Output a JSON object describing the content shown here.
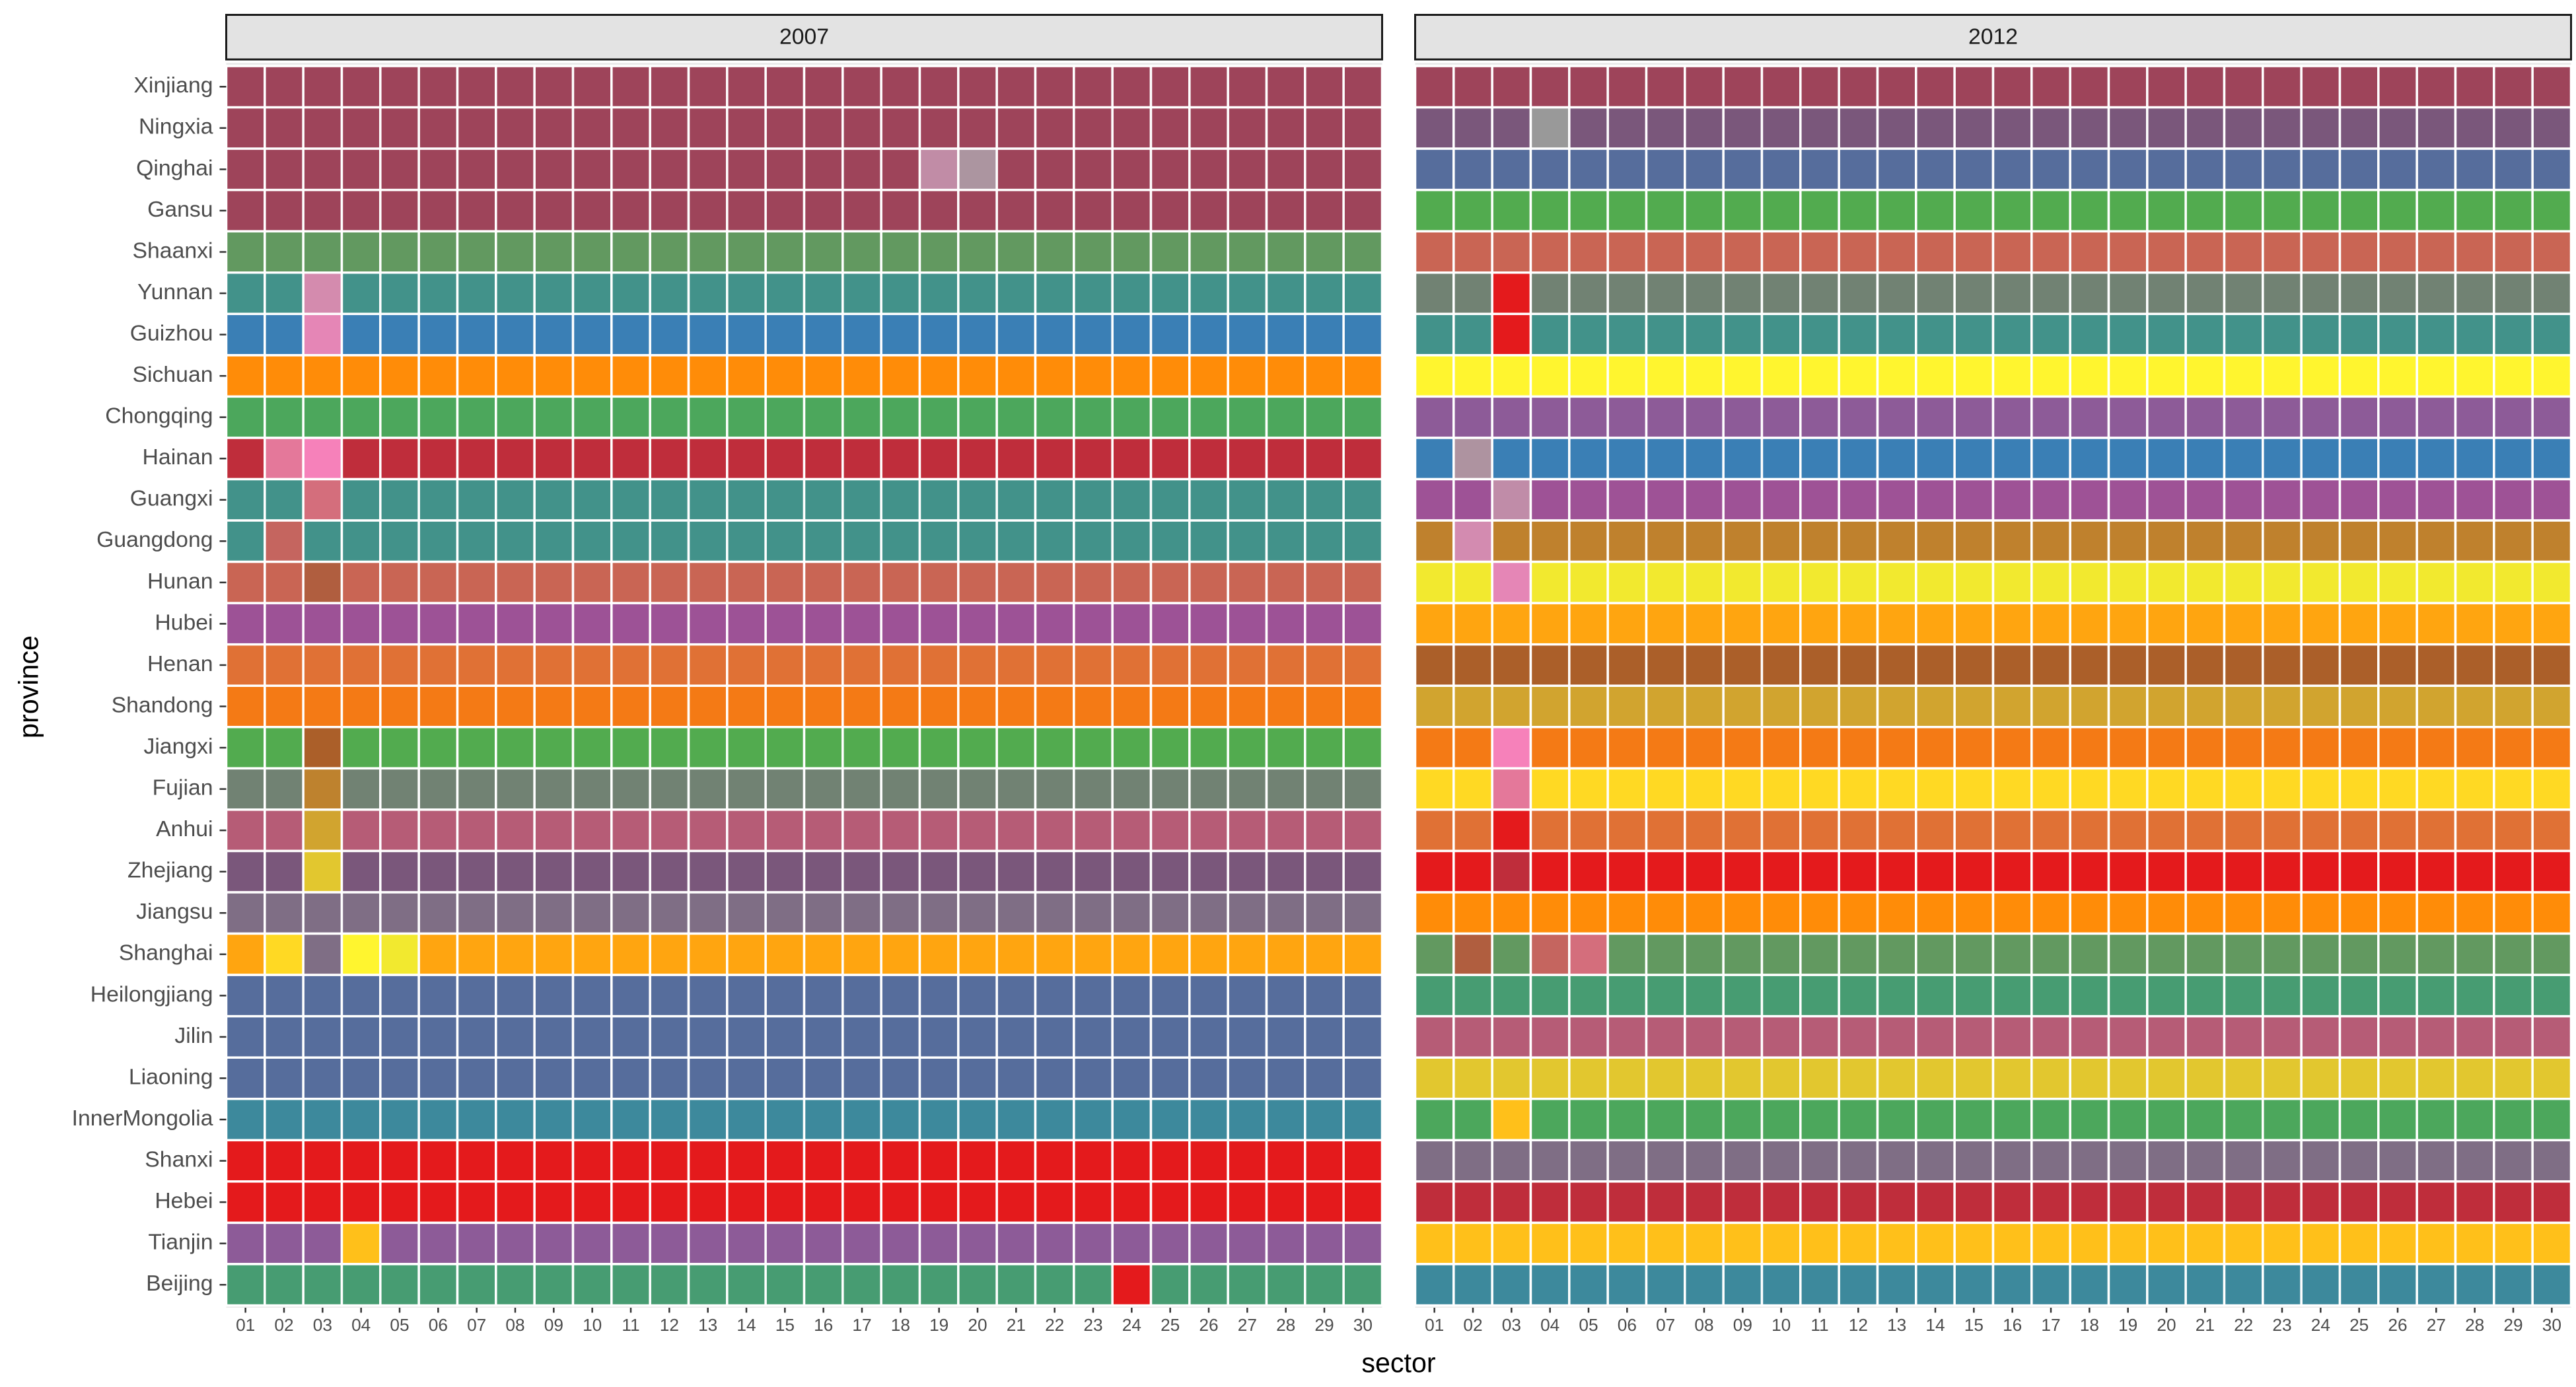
{
  "chart_data": {
    "type": "heatmap",
    "xlabel": "sector",
    "ylabel": "province",
    "facets": [
      "2007",
      "2012"
    ],
    "sectors": [
      "01",
      "02",
      "03",
      "04",
      "05",
      "06",
      "07",
      "08",
      "09",
      "10",
      "11",
      "12",
      "13",
      "14",
      "15",
      "16",
      "17",
      "18",
      "19",
      "20",
      "21",
      "22",
      "23",
      "24",
      "25",
      "26",
      "27",
      "28",
      "29",
      "30"
    ],
    "provinces": [
      "Xinjiang",
      "Ningxia",
      "Qinghai",
      "Gansu",
      "Shaanxi",
      "Yunnan",
      "Guizhou",
      "Sichuan",
      "Chongqing",
      "Hainan",
      "Guangxi",
      "Guangdong",
      "Hunan",
      "Hubei",
      "Henan",
      "Shandong",
      "Jiangxi",
      "Fujian",
      "Anhui",
      "Zhejiang",
      "Jiangsu",
      "Shanghai",
      "Heilongjiang",
      "Jilin",
      "Liaoning",
      "InnerMongolia",
      "Shanxi",
      "Hebei",
      "Tianjin",
      "Beijing"
    ],
    "fill": {
      "2007": [
        {
          "base": "#9e445a"
        },
        {
          "base": "#9e445a"
        },
        {
          "base": "#9e445a",
          "except": {
            "19": "#c18ca6",
            "20": "#ac95a0"
          }
        },
        {
          "base": "#9e445a"
        },
        {
          "base": "#629960"
        },
        {
          "base": "#42928a",
          "except": {
            "03": "#d48bae"
          }
        },
        {
          "base": "#3a7fb5",
          "except": {
            "03": "#e586b6"
          }
        },
        {
          "base": "#ff8c08"
        },
        {
          "base": "#4ca75c"
        },
        {
          "base": "#bf2d3b",
          "except": {
            "02": "#e4789a",
            "03": "#f681ba"
          }
        },
        {
          "base": "#42928a",
          "except": {
            "03": "#d46e7c"
          }
        },
        {
          "base": "#42928a",
          "except": {
            "02": "#c5655f"
          }
        },
        {
          "base": "#c96554",
          "except": {
            "03": "#b05e3f"
          }
        },
        {
          "base": "#9d5296"
        },
        {
          "base": "#e07135"
        },
        {
          "base": "#f47a15"
        },
        {
          "base": "#52ab4f",
          "except": {
            "03": "#ab5f29"
          }
        },
        {
          "base": "#718273",
          "except": {
            "03": "#be822e"
          }
        },
        {
          "base": "#b65c76",
          "except": {
            "03": "#d1a42f"
          }
        },
        {
          "base": "#7a577b",
          "except": {
            "03": "#e2c72f"
          }
        },
        {
          "base": "#7f6e85"
        },
        {
          "base": "#ffa510",
          "except": {
            "02": "#ffd923",
            "03": "#7f6e85",
            "04": "#fff52f",
            "05": "#f2e92f"
          }
        },
        {
          "base": "#566d9c"
        },
        {
          "base": "#566d9c"
        },
        {
          "base": "#566d9c"
        },
        {
          "base": "#3d899c"
        },
        {
          "base": "#e41a1c"
        },
        {
          "base": "#e41a1c"
        },
        {
          "base": "#8d5b98",
          "except": {
            "04": "#ffc01a"
          }
        },
        {
          "base": "#479c72",
          "except": {
            "24": "#e41a1c"
          }
        }
      ],
      "2012": [
        {
          "base": "#9e445a"
        },
        {
          "base": "#7a577b",
          "except": {
            "04": "#999999"
          }
        },
        {
          "base": "#566d9c"
        },
        {
          "base": "#52ab4f"
        },
        {
          "base": "#c96554"
        },
        {
          "base": "#718273",
          "except": {
            "03": "#e41a1c"
          }
        },
        {
          "base": "#42928a",
          "except": {
            "03": "#e41a1c"
          }
        },
        {
          "base": "#fff52f"
        },
        {
          "base": "#8d5b98"
        },
        {
          "base": "#3a7fb5",
          "except": {
            "02": "#ae93a0"
          }
        },
        {
          "base": "#9e5296",
          "except": {
            "03": "#c08ca8"
          }
        },
        {
          "base": "#bf812d",
          "except": {
            "02": "#d38bb0"
          }
        },
        {
          "base": "#f2e92f",
          "except": {
            "03": "#e586b6"
          }
        },
        {
          "base": "#ffa510"
        },
        {
          "base": "#ab5f29"
        },
        {
          "base": "#d1a42f"
        },
        {
          "base": "#f47a15",
          "except": {
            "03": "#f681ba"
          }
        },
        {
          "base": "#ffd923",
          "except": {
            "03": "#e4789a"
          }
        },
        {
          "base": "#e07135",
          "except": {
            "03": "#e41a1c"
          }
        },
        {
          "base": "#e41a1c",
          "except": {
            "03": "#bf2d3b"
          }
        },
        {
          "base": "#ff8c08"
        },
        {
          "base": "#629960",
          "except": {
            "02": "#b05e3f",
            "04": "#c5655f",
            "05": "#d46e7c"
          }
        },
        {
          "base": "#479c72"
        },
        {
          "base": "#b65c76"
        },
        {
          "base": "#e2c72f"
        },
        {
          "base": "#4ca75c",
          "except": {
            "03": "#ffc01a"
          }
        },
        {
          "base": "#7f6e85"
        },
        {
          "base": "#bf2d3b"
        },
        {
          "base": "#ffc01a"
        },
        {
          "base": "#3d899c"
        }
      ]
    },
    "legend": "none",
    "grid": false
  },
  "colors": {
    "panel_bg": "#ebebeb",
    "strip_bg": "#e3e3e3",
    "cell_border": "#ffffff"
  }
}
